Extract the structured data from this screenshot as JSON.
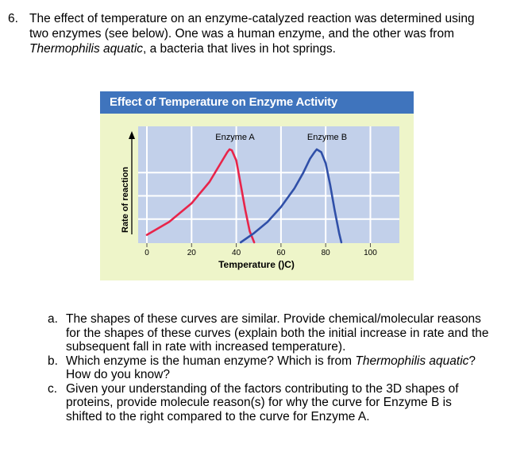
{
  "question": {
    "number": "6.",
    "lines": [
      "The effect of temperature on an enzyme-catalyzed reaction was determined using",
      "two enzymes (see below). One was a human enzyme, and the other was from"
    ],
    "line3_italic": "Thermophilis aquatic",
    "line3_rest": ", a bacteria that lives in hot springs."
  },
  "figure": {
    "title": "Effect of Temperature on Enzyme Activity",
    "colors": {
      "title_bar": "#3f74bd",
      "background": "#eef5c9",
      "plot": "#c2d0ea",
      "grid": "#ffffff",
      "enzyme_a": "#e8244a",
      "enzyme_b": "#2f4fa8"
    }
  },
  "chart_data": {
    "type": "line",
    "title": "Effect of Temperature on Enzyme Activity",
    "xlabel": "Temperature ()C)",
    "ylabel": "Rate of reaction",
    "xlim": [
      0,
      108
    ],
    "ylim": [
      0,
      1
    ],
    "xticks": [
      0,
      20,
      40,
      60,
      80,
      100
    ],
    "x_tick_labels": [
      "0",
      "20",
      "40",
      "60",
      "80",
      "100"
    ],
    "y_axis_numeric": false,
    "grid": true,
    "series": [
      {
        "name": "Enzyme A",
        "color": "#e8244a",
        "x": [
          0,
          10,
          20,
          28,
          33,
          36,
          37,
          38,
          40,
          42,
          44,
          46,
          48
        ],
        "y": [
          0.08,
          0.22,
          0.42,
          0.65,
          0.85,
          0.97,
          1.0,
          0.99,
          0.88,
          0.62,
          0.35,
          0.12,
          0.0
        ]
      },
      {
        "name": "Enzyme B",
        "color": "#2f4fa8",
        "x": [
          42,
          48,
          54,
          60,
          66,
          70,
          73,
          75,
          76,
          78,
          80,
          82,
          84,
          86,
          87
        ],
        "y": [
          0.0,
          0.1,
          0.22,
          0.38,
          0.58,
          0.75,
          0.9,
          0.97,
          1.0,
          0.97,
          0.85,
          0.62,
          0.35,
          0.1,
          0.0
        ]
      }
    ]
  },
  "subquestions": [
    {
      "mark": "a.",
      "lines": [
        "The shapes of these curves are similar. Provide chemical/molecular reasons",
        "for the shapes of these curves (explain both the initial increase in rate and the",
        "subsequent fall in rate with increased temperature)."
      ]
    },
    {
      "mark": "b.",
      "line1_pre": "Which enzyme is the human enzyme? Which is from ",
      "line1_italic": "Thermophilis aquatic",
      "line1_post": "?",
      "line2": "How do you know?"
    },
    {
      "mark": "c.",
      "lines": [
        "Given your understanding of the factors contributing to the 3D shapes of",
        "proteins, provide molecule reason(s) for why the curve for Enzyme B is",
        "shifted to the right compared to the curve for Enzyme A."
      ]
    }
  ]
}
